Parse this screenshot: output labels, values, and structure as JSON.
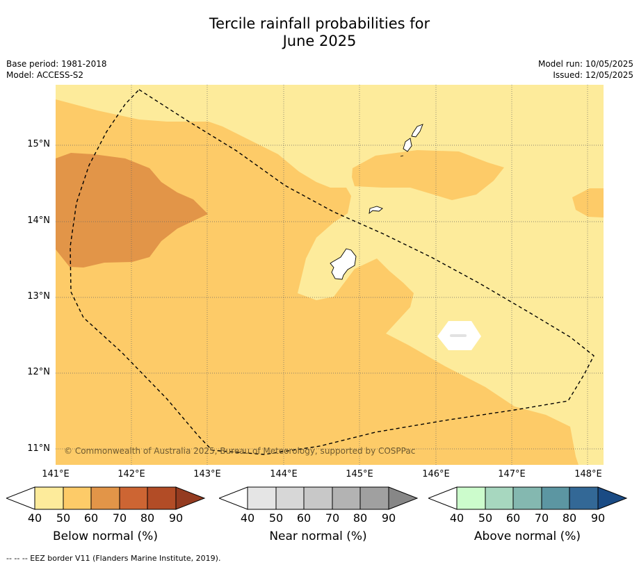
{
  "title_line1": "Tercile rainfall probabilities for",
  "title_line2": "June 2025",
  "meta_left": {
    "base_period": "Base period: 1981-2018",
    "model": "Model: ACCESS-S2"
  },
  "meta_right": {
    "model_run": "Model run: 10/05/2025",
    "issued": "Issued: 12/05/2025"
  },
  "map": {
    "latitude_labels": [
      "15°N",
      "14°N",
      "13°N",
      "12°N",
      "11°N"
    ],
    "longitude_labels": [
      "141°E",
      "142°E",
      "143°E",
      "144°E",
      "145°E",
      "146°E",
      "147°E",
      "148°E"
    ],
    "copyright": "© Commonwealth of Australia 2025, Bureau of Meteorology, supported by COSPPac",
    "fill_colors": {
      "below_40_50": "#fdeb9b",
      "below_50_60": "#fdcb68",
      "below_60_70": "#e29548",
      "ocean_no_signal": "#ffffff"
    }
  },
  "colorbars": [
    {
      "title": "Below normal (%)",
      "ticks": [
        "40",
        "50",
        "60",
        "70",
        "80",
        "90"
      ],
      "colors": [
        "#ffffff",
        "#fdeb9b",
        "#fdcb68",
        "#e29548",
        "#cd6533",
        "#b24c26",
        "#943b20"
      ]
    },
    {
      "title": "Near normal (%)",
      "ticks": [
        "40",
        "50",
        "60",
        "70",
        "80",
        "90"
      ],
      "colors": [
        "#ffffff",
        "#e5e5e5",
        "#d7d7d7",
        "#c8c8c8",
        "#b3b3b3",
        "#a0a0a0",
        "#878787"
      ]
    },
    {
      "title": "Above normal (%)",
      "ticks": [
        "40",
        "50",
        "60",
        "70",
        "80",
        "90"
      ],
      "colors": [
        "#ffffff",
        "#ccfccc",
        "#a7d7bf",
        "#84b8b0",
        "#5c96a2",
        "#336896",
        "#1a4b84"
      ]
    }
  ],
  "footnote": "--  --  -- EEZ border V11 (Flanders Marine Institute, 2019)."
}
